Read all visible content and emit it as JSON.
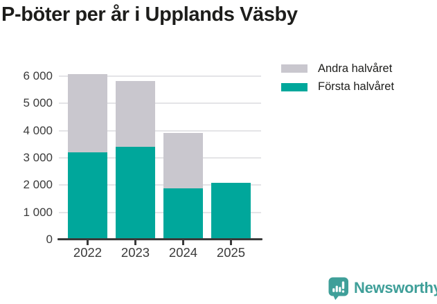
{
  "title": "P-böter per år i Upplands Väsby",
  "chart_data": {
    "type": "bar",
    "stacked": true,
    "title": "P-böter per år i Upplands Väsby",
    "categories": [
      "2022",
      "2023",
      "2024",
      "2025"
    ],
    "series": [
      {
        "name": "Första halvåret",
        "color": "#00a79b",
        "values": [
          3200,
          3400,
          1890,
          2090
        ]
      },
      {
        "name": "Andra halvåret",
        "color": "#c9c7ce",
        "values": [
          2870,
          2420,
          2030,
          0
        ]
      }
    ],
    "xlabel": "",
    "ylabel": "",
    "ylim": [
      0,
      6200
    ],
    "yticks": [
      0,
      1000,
      2000,
      3000,
      4000,
      5000,
      6000
    ],
    "ytick_labels": [
      "0",
      "1 000",
      "2 000",
      "3 000",
      "4 000",
      "5 000",
      "6 000"
    ],
    "grid": true,
    "legend_position": "top-right"
  },
  "legend": {
    "items": [
      {
        "label": "Andra halvåret",
        "color": "#c9c7ce"
      },
      {
        "label": "Första halvåret",
        "color": "#00a79b"
      }
    ]
  },
  "branding": {
    "logo_text": "Newsworthy",
    "logo_color": "#3f9f99",
    "logo_icon": "speech-bubble-bar-chart-icon"
  }
}
